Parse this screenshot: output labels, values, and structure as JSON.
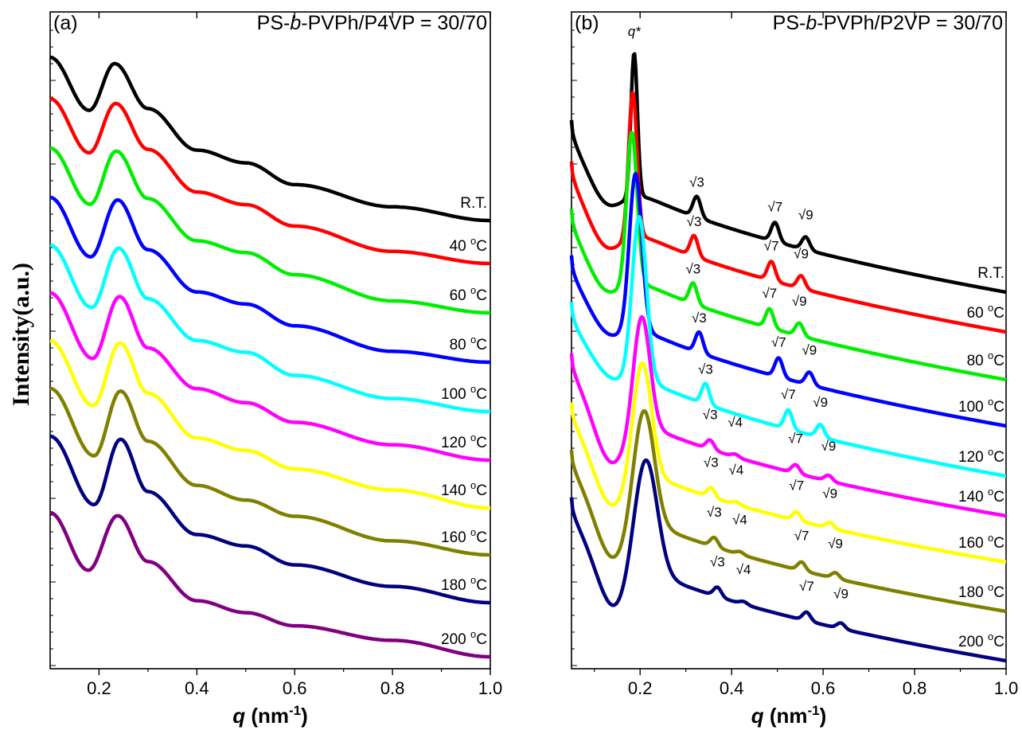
{
  "ylabel": "Intensity(a.u.)",
  "chart_data": [
    {
      "type": "line",
      "panel": "(a)",
      "title_parts": [
        "PS-",
        "b",
        "-PVPh/P4VP = 30/70"
      ],
      "xlabel": {
        "main": "q",
        "rest": " (nm",
        "sup": "-1",
        "close": ")"
      },
      "ylabel": "Intensity(a.u.)",
      "xlim": [
        0.1,
        1.0
      ],
      "xticks": [
        0.2,
        0.4,
        0.6,
        0.8,
        1.0
      ],
      "xtick_labels": [
        "0.2",
        "0.4",
        "0.6",
        "0.8",
        "1.0"
      ],
      "y_scale": "log (arbitrary units, curves vertically offset)",
      "grid": false,
      "series": [
        {
          "name": "R.T.",
          "temp": "R.T.",
          "unit": "",
          "color": "#000000",
          "start": 0.63,
          "minv": 0.6,
          "peak": 0.59,
          "end": 1.0,
          "peak_q": 0.232,
          "min_q": 0.18,
          "points": [
            [
              0.1,
              2.2
            ],
            [
              0.18,
              1.48
            ],
            [
              0.232,
              2.1
            ],
            [
              0.3,
              1.5
            ],
            [
              0.4,
              1.1
            ],
            [
              0.5,
              1.0
            ],
            [
              0.6,
              0.85
            ],
            [
              0.8,
              0.72
            ],
            [
              1.0,
              0.65
            ]
          ]
        },
        {
          "name": "40 °C",
          "temp": "40 ",
          "unit": "oC",
          "color": "#ff0000",
          "start": 0.57,
          "minv": 0.56,
          "peak": 0.53,
          "end": 0.95,
          "peak_q": 0.234,
          "min_q": 0.18,
          "points": [
            [
              0.1,
              1.8
            ],
            [
              0.18,
              1.22
            ],
            [
              0.234,
              1.74
            ],
            [
              0.3,
              1.25
            ],
            [
              0.4,
              0.92
            ],
            [
              0.5,
              0.84
            ],
            [
              0.6,
              0.72
            ],
            [
              0.8,
              0.6
            ],
            [
              1.0,
              0.55
            ]
          ]
        },
        {
          "name": "60 °C",
          "temp": "60 ",
          "unit": "oC",
          "color": "#00ee00",
          "start": 0.57,
          "minv": 0.55,
          "peak": 0.52,
          "end": 0.94,
          "peak_q": 0.235,
          "min_q": 0.182,
          "points": [
            [
              0.1,
              1.45
            ],
            [
              0.182,
              0.98
            ],
            [
              0.235,
              1.42
            ],
            [
              0.3,
              1.02
            ],
            [
              0.4,
              0.76
            ],
            [
              0.5,
              0.7
            ],
            [
              0.6,
              0.6
            ],
            [
              0.8,
              0.5
            ],
            [
              1.0,
              0.46
            ]
          ]
        },
        {
          "name": "80 °C",
          "temp": "80 ",
          "unit": "oC",
          "color": "#0000ff",
          "start": 0.56,
          "minv": 0.53,
          "peak": 0.5,
          "end": 0.92,
          "peak_q": 0.238,
          "min_q": 0.183,
          "points": [
            [
              0.1,
              1.2
            ],
            [
              0.183,
              0.8
            ],
            [
              0.238,
              1.18
            ],
            [
              0.3,
              0.84
            ],
            [
              0.4,
              0.63
            ],
            [
              0.5,
              0.58
            ],
            [
              0.6,
              0.5
            ],
            [
              0.8,
              0.42
            ],
            [
              1.0,
              0.39
            ]
          ]
        },
        {
          "name": "100 °C",
          "temp": "100 ",
          "unit": "oC",
          "color": "#00ffff",
          "start": 0.56,
          "minv": 0.53,
          "peak": 0.5,
          "end": 0.92,
          "peak_q": 0.24,
          "min_q": 0.185,
          "points": [
            [
              0.1,
              1.0
            ],
            [
              0.185,
              0.66
            ],
            [
              0.24,
              0.98
            ],
            [
              0.3,
              0.7
            ],
            [
              0.4,
              0.53
            ],
            [
              0.5,
              0.49
            ],
            [
              0.6,
              0.42
            ],
            [
              0.8,
              0.36
            ],
            [
              1.0,
              0.33
            ]
          ]
        },
        {
          "name": "120 °C",
          "temp": "120 ",
          "unit": "oC",
          "color": "#ff00ff",
          "start": 0.54,
          "minv": 0.52,
          "peak": 0.48,
          "end": 0.91,
          "peak_q": 0.242,
          "min_q": 0.187,
          "points": [
            [
              0.1,
              0.85
            ],
            [
              0.187,
              0.55
            ],
            [
              0.242,
              0.83
            ],
            [
              0.3,
              0.59
            ],
            [
              0.4,
              0.45
            ],
            [
              0.5,
              0.41
            ],
            [
              0.6,
              0.36
            ],
            [
              0.8,
              0.31
            ],
            [
              1.0,
              0.28
            ]
          ]
        },
        {
          "name": "140 °C",
          "temp": "140 ",
          "unit": "oC",
          "color": "#ffff00",
          "start": 0.54,
          "minv": 0.51,
          "peak": 0.47,
          "end": 0.91,
          "peak_q": 0.243,
          "min_q": 0.188,
          "points": [
            [
              0.1,
              0.72
            ],
            [
              0.188,
              0.47
            ],
            [
              0.243,
              0.71
            ],
            [
              0.3,
              0.51
            ],
            [
              0.4,
              0.38
            ],
            [
              0.5,
              0.35
            ],
            [
              0.6,
              0.31
            ],
            [
              0.8,
              0.27
            ],
            [
              1.0,
              0.24
            ]
          ]
        },
        {
          "name": "160 °C",
          "temp": "160 ",
          "unit": "oC",
          "color": "#808000",
          "start": 0.53,
          "minv": 0.5,
          "peak": 0.46,
          "end": 0.9,
          "peak_q": 0.244,
          "min_q": 0.19,
          "points": [
            [
              0.1,
              0.62
            ],
            [
              0.19,
              0.4
            ],
            [
              0.244,
              0.61
            ],
            [
              0.3,
              0.44
            ],
            [
              0.4,
              0.33
            ],
            [
              0.5,
              0.3
            ],
            [
              0.6,
              0.27
            ],
            [
              0.8,
              0.23
            ],
            [
              1.0,
              0.21
            ]
          ]
        },
        {
          "name": "180 °C",
          "temp": "180 ",
          "unit": "oC",
          "color": "#000080",
          "start": 0.53,
          "minv": 0.5,
          "peak": 0.46,
          "end": 0.9,
          "peak_q": 0.244,
          "min_q": 0.19,
          "points": [
            [
              0.1,
              0.53
            ],
            [
              0.19,
              0.34
            ],
            [
              0.244,
              0.52
            ],
            [
              0.3,
              0.37
            ],
            [
              0.4,
              0.28
            ],
            [
              0.5,
              0.26
            ],
            [
              0.6,
              0.23
            ],
            [
              0.8,
              0.2
            ],
            [
              1.0,
              0.18
            ]
          ]
        },
        {
          "name": "200 °C",
          "temp": "200 ",
          "unit": "oC",
          "color": "#800080",
          "start": 0.52,
          "minv": 0.49,
          "peak": 0.45,
          "end": 0.89,
          "peak_q": 0.238,
          "min_q": 0.178,
          "points": [
            [
              0.1,
              0.45
            ],
            [
              0.178,
              0.29
            ],
            [
              0.238,
              0.44
            ],
            [
              0.3,
              0.31
            ],
            [
              0.4,
              0.23
            ],
            [
              0.5,
              0.21
            ],
            [
              0.6,
              0.19
            ],
            [
              0.8,
              0.17
            ],
            [
              1.0,
              0.15
            ]
          ]
        }
      ]
    },
    {
      "type": "line",
      "panel": "(b)",
      "title_parts": [
        "PS-",
        "b",
        "-PVPh/P2VP = 30/70"
      ],
      "xlabel": {
        "main": "q",
        "rest": " (nm",
        "sup": "-1",
        "close": ")"
      },
      "ylabel": "Intensity(a.u.)",
      "xlim": [
        0.05,
        1.0
      ],
      "xticks": [
        0.2,
        0.4,
        0.6,
        0.8,
        1.0
      ],
      "xtick_labels": [
        "0.2",
        "0.4",
        "0.6",
        "0.8",
        "1.0"
      ],
      "y_scale": "log (arbitrary units, curves vertically offset)",
      "grid": false,
      "qstar_label": "q*",
      "series": [
        {
          "name": "R.T.",
          "temp": "R.T.",
          "unit": "",
          "color": "#000000",
          "q_star": 0.187,
          "peaks": [
            [
              "√3",
              0.324
            ],
            [
              "√7",
              0.495
            ],
            [
              "√9",
              0.562
            ]
          ]
        },
        {
          "name": "60 °C",
          "temp": "60 ",
          "unit": "oC",
          "color": "#ff0000",
          "q_star": 0.184,
          "peaks": [
            [
              "√3",
              0.318
            ],
            [
              "√7",
              0.487
            ],
            [
              "√9",
              0.552
            ]
          ]
        },
        {
          "name": "80 °C",
          "temp": "80 ",
          "unit": "oC",
          "color": "#00ee00",
          "q_star": 0.182,
          "peaks": [
            [
              "√3",
              0.316
            ],
            [
              "√7",
              0.483
            ],
            [
              "√9",
              0.548
            ]
          ]
        },
        {
          "name": "100 °C",
          "temp": "100 ",
          "unit": "oC",
          "color": "#0000ff",
          "q_star": 0.19,
          "peaks": [
            [
              "√3",
              0.329
            ],
            [
              "√7",
              0.503
            ],
            [
              "√9",
              0.57
            ]
          ]
        },
        {
          "name": "120 °C",
          "temp": "120 ",
          "unit": "oC",
          "color": "#00ffff",
          "q_star": 0.198,
          "peaks": [
            [
              "√3",
              0.343
            ],
            [
              "√7",
              0.524
            ],
            [
              "√9",
              0.594
            ]
          ]
        },
        {
          "name": "140 °C",
          "temp": "140 ",
          "unit": "oC",
          "color": "#ff00ff",
          "q_star": 0.204,
          "peaks": [
            [
              "√3",
              0.353
            ],
            [
              "√4",
              0.408
            ],
            [
              "√7",
              0.54
            ],
            [
              "√9",
              0.612
            ]
          ]
        },
        {
          "name": "160 °C",
          "temp": "160 ",
          "unit": "oC",
          "color": "#ffff00",
          "q_star": 0.205,
          "peaks": [
            [
              "√3",
              0.355
            ],
            [
              "√4",
              0.41
            ],
            [
              "√7",
              0.542
            ],
            [
              "√9",
              0.615
            ]
          ]
        },
        {
          "name": "180 °C",
          "temp": "180 ",
          "unit": "oC",
          "color": "#808000",
          "q_star": 0.209,
          "peaks": [
            [
              "√3",
              0.362
            ],
            [
              "√4",
              0.418
            ],
            [
              "√7",
              0.553
            ],
            [
              "√9",
              0.627
            ]
          ]
        },
        {
          "name": "200 °C",
          "temp": "200 ",
          "unit": "oC",
          "color": "#000080",
          "q_star": 0.213,
          "peaks": [
            [
              "√3",
              0.369
            ],
            [
              "√4",
              0.426
            ],
            [
              "√7",
              0.564
            ],
            [
              "√9",
              0.639
            ]
          ]
        }
      ]
    }
  ]
}
